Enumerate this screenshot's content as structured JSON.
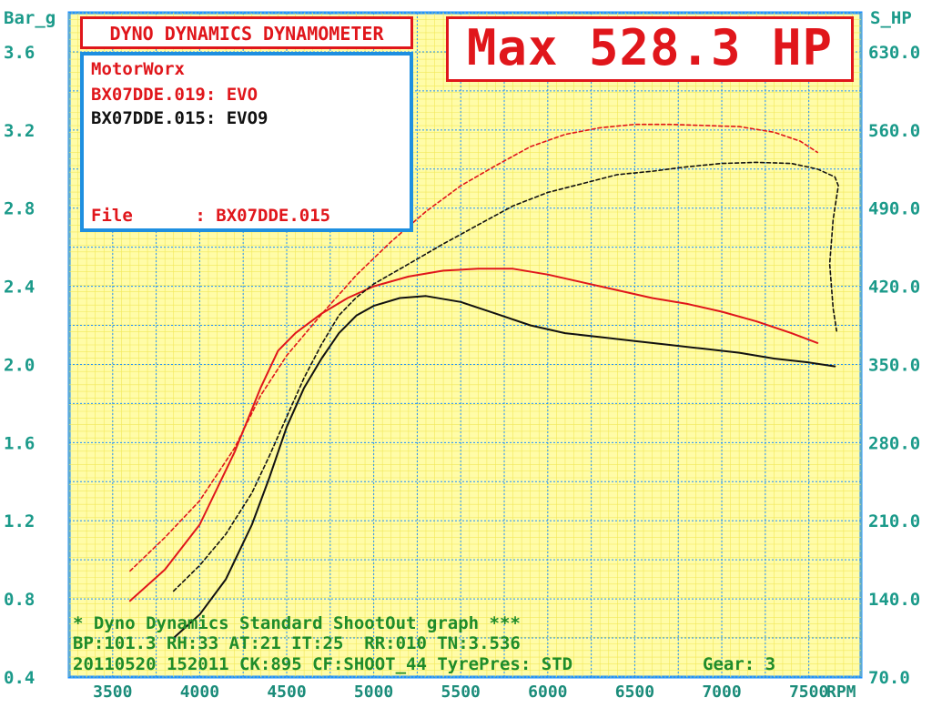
{
  "header": {
    "left_axis_title": "Bar_g",
    "right_axis_title": "S_HP",
    "title_box": "DYNO DYNAMICS DYNAMOMETER",
    "max_box": "Max 528.3 HP"
  },
  "legend": {
    "shop": "MotorWorx",
    "run1": "BX07DDE.019: EVO",
    "run2": "BX07DDE.015: EVO9",
    "file": "File      : BX07DDE.015"
  },
  "info": {
    "line1": "* Dyno Dynamics Standard ShootOut graph ***",
    "line2": "BP:101.3 RH:33 AT:21 IT:25  RR:010 TN:3.536",
    "line3": "20110520 152011 CK:895 CF:SHOOT_44 TyrePres: STD",
    "gear": "Gear: 3"
  },
  "colors": {
    "background": "#ffffff",
    "grid": "#1e90ff",
    "axis_text": "#1b9a8a",
    "red_run": "#e0161b",
    "black_run": "#111111",
    "info_text": "#1e8c2a",
    "legend_border": "#1e8fe0"
  },
  "chart_data": {
    "type": "line",
    "x_axis": {
      "label": "RPM",
      "min": 3250,
      "max": 7800,
      "ticks": [
        "3500",
        "4000",
        "4500",
        "5000",
        "5500",
        "6000",
        "6500",
        "7000",
        "7500"
      ]
    },
    "y_left": {
      "label": "Bar_g",
      "min": 0.4,
      "max": 3.8,
      "ticks": [
        "0.4",
        "0.8",
        "1.2",
        "1.6",
        "2.0",
        "2.4",
        "2.8",
        "3.2",
        "3.6"
      ]
    },
    "y_right": {
      "label": "S_HP",
      "min": 70,
      "max": 665,
      "ticks": [
        "70.0",
        "140.0",
        "210.0",
        "280.0",
        "350.0",
        "420.0",
        "490.0",
        "560.0",
        "630.0"
      ]
    },
    "grid": true,
    "series": [
      {
        "name": "BX07DDE.019: EVO",
        "color": "#e0161b",
        "style": "solid",
        "axis": "left",
        "points": [
          [
            3600,
            0.79
          ],
          [
            3800,
            0.95
          ],
          [
            4000,
            1.18
          ],
          [
            4200,
            1.55
          ],
          [
            4350,
            1.88
          ],
          [
            4450,
            2.07
          ],
          [
            4550,
            2.16
          ],
          [
            4700,
            2.26
          ],
          [
            4850,
            2.34
          ],
          [
            5000,
            2.4
          ],
          [
            5200,
            2.45
          ],
          [
            5400,
            2.48
          ],
          [
            5600,
            2.49
          ],
          [
            5800,
            2.49
          ],
          [
            6000,
            2.46
          ],
          [
            6200,
            2.42
          ],
          [
            6400,
            2.38
          ],
          [
            6600,
            2.34
          ],
          [
            6800,
            2.31
          ],
          [
            7000,
            2.27
          ],
          [
            7200,
            2.22
          ],
          [
            7400,
            2.16
          ],
          [
            7550,
            2.11
          ]
        ]
      },
      {
        "name": "BX07DDE.019: EVO",
        "color": "#e0161b",
        "style": "dashed",
        "axis": "right",
        "points": [
          [
            3600,
            165
          ],
          [
            3800,
            195
          ],
          [
            4000,
            228
          ],
          [
            4200,
            275
          ],
          [
            4350,
            322
          ],
          [
            4500,
            358
          ],
          [
            4700,
            395
          ],
          [
            4900,
            430
          ],
          [
            5100,
            460
          ],
          [
            5300,
            487
          ],
          [
            5500,
            510
          ],
          [
            5700,
            528
          ],
          [
            5900,
            545
          ],
          [
            6100,
            556
          ],
          [
            6300,
            562
          ],
          [
            6500,
            565
          ],
          [
            6700,
            565
          ],
          [
            6900,
            564
          ],
          [
            7100,
            563
          ],
          [
            7300,
            558
          ],
          [
            7450,
            550
          ],
          [
            7550,
            540
          ]
        ]
      },
      {
        "name": "BX07DDE.015: EVO9",
        "color": "#111111",
        "style": "solid",
        "axis": "left",
        "points": [
          [
            3850,
            0.6
          ],
          [
            4000,
            0.72
          ],
          [
            4150,
            0.9
          ],
          [
            4300,
            1.18
          ],
          [
            4400,
            1.42
          ],
          [
            4500,
            1.68
          ],
          [
            4600,
            1.88
          ],
          [
            4700,
            2.03
          ],
          [
            4800,
            2.16
          ],
          [
            4900,
            2.25
          ],
          [
            5000,
            2.3
          ],
          [
            5150,
            2.34
          ],
          [
            5300,
            2.35
          ],
          [
            5500,
            2.32
          ],
          [
            5700,
            2.26
          ],
          [
            5900,
            2.2
          ],
          [
            6100,
            2.16
          ],
          [
            6300,
            2.14
          ],
          [
            6500,
            2.12
          ],
          [
            6700,
            2.1
          ],
          [
            6900,
            2.08
          ],
          [
            7100,
            2.06
          ],
          [
            7300,
            2.03
          ],
          [
            7500,
            2.01
          ],
          [
            7650,
            1.99
          ]
        ]
      },
      {
        "name": "BX07DDE.015: EVO9",
        "color": "#111111",
        "style": "dashed",
        "axis": "right",
        "points": [
          [
            3850,
            147
          ],
          [
            4000,
            170
          ],
          [
            4150,
            198
          ],
          [
            4300,
            235
          ],
          [
            4400,
            268
          ],
          [
            4500,
            303
          ],
          [
            4600,
            338
          ],
          [
            4700,
            368
          ],
          [
            4800,
            394
          ],
          [
            4900,
            410
          ],
          [
            5000,
            422
          ],
          [
            5200,
            440
          ],
          [
            5400,
            458
          ],
          [
            5600,
            475
          ],
          [
            5800,
            492
          ],
          [
            6000,
            504
          ],
          [
            6200,
            512
          ],
          [
            6400,
            520
          ],
          [
            6600,
            523
          ],
          [
            6800,
            527
          ],
          [
            7000,
            530
          ],
          [
            7200,
            531
          ],
          [
            7400,
            530
          ],
          [
            7550,
            525
          ],
          [
            7650,
            518
          ],
          [
            7670,
            510
          ],
          [
            7640,
            480
          ],
          [
            7620,
            440
          ],
          [
            7640,
            400
          ],
          [
            7660,
            380
          ]
        ]
      }
    ]
  }
}
